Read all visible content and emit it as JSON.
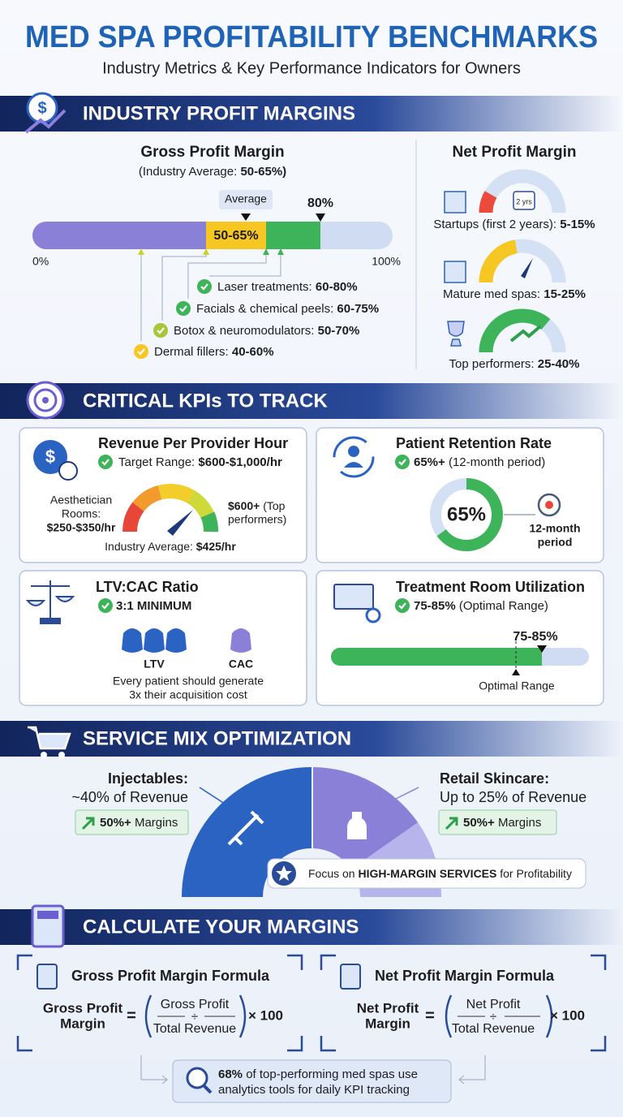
{
  "header": {
    "title": "MED SPA PROFITABILITY BENCHMARKS",
    "subtitle": "Industry Metrics & Key Performance Indicators for Owners"
  },
  "profit_margins": {
    "heading": "INDUSTRY PROFIT MARGINS",
    "gross": {
      "title": "Gross Profit Margin",
      "note_label": "(Industry Average: ",
      "note_value": "50-65%)",
      "average_label": "Average",
      "band_label": "50-65%",
      "marker_label": "80%",
      "axis_min": "0%",
      "axis_max": "100%",
      "services": [
        {
          "name": "Laser treatments: ",
          "range": "60-80%"
        },
        {
          "name": "Facials & chemical peels: ",
          "range": "60-75%"
        },
        {
          "name": "Botox & neuromodulators: ",
          "range": "50-70%"
        },
        {
          "name": "Dermal fillers: ",
          "range": "40-60%"
        }
      ]
    },
    "net": {
      "title": "Net Profit Margin",
      "badge": "2 yrs",
      "tiers": [
        {
          "label": "Startups (first 2 years): ",
          "range": "5-15%"
        },
        {
          "label": "Mature med spas: ",
          "range": "15-25%"
        },
        {
          "label": "Top performers: ",
          "range": "25-40%"
        }
      ]
    }
  },
  "kpis": {
    "heading": "CRITICAL KPIs TO TRACK",
    "revenue": {
      "title": "Revenue Per Provider Hour",
      "target_label": "Target Range: ",
      "target_value": "$600-$1,000/hr",
      "left_label_lines": [
        "Aesthetician",
        "Rooms:"
      ],
      "left_value": "$250-$350/hr",
      "right_value": "$600+",
      "right_label_lines": [
        "(Top",
        "performers)"
      ],
      "avg_label": "Industry Average: ",
      "avg_value": "$425/hr"
    },
    "retention": {
      "title": "Patient Retention Rate",
      "target_value": "65%+",
      "target_label": " (12-month period)",
      "center": "65%",
      "side_lines": [
        "12-month",
        "period"
      ]
    },
    "ltv": {
      "title": "LTV:CAC Ratio",
      "target": "3:1 MINIMUM",
      "ltv": "LTV",
      "cac": "CAC",
      "note_lines": [
        "Every patient should generate",
        "3x their acquisition cost"
      ]
    },
    "utilization": {
      "title": "Treatment Room Utilization",
      "target_value": "75-85%",
      "target_label": " (Optimal Range)",
      "marker": "75-85%",
      "bottom": "Optimal Range"
    }
  },
  "service_mix": {
    "heading": "SERVICE MIX OPTIMIZATION",
    "injectables": {
      "title": "Injectables:",
      "share": "~40% of Revenue",
      "margin": "50%+",
      "margin_label": " Margins"
    },
    "retail": {
      "title": "Retail Skincare:",
      "share": "Up to 25% of Revenue",
      "margin": "50%+",
      "margin_label": " Margins"
    },
    "callout": [
      "Focus on ",
      "HIGH-MARGIN SERVICES",
      " for Profitability"
    ]
  },
  "calculate": {
    "heading": "CALCULATE YOUR MARGINS",
    "formulas": [
      {
        "title": "Gross Profit Margin Formula",
        "lhs_lines": [
          "Gross Profit",
          "Margin"
        ],
        "equals": "=",
        "numerator": "Gross Profit",
        "operator": "÷",
        "denominator": "Total Revenue",
        "multiplier": "× 100"
      },
      {
        "title": "Net Profit Margin Formula",
        "lhs_lines": [
          "Net Profit",
          "Margin"
        ],
        "equals": "=",
        "numerator": "Net Profit",
        "operator": "÷",
        "denominator": "Total Revenue",
        "multiplier": "× 100"
      }
    ],
    "footer": {
      "stat": "68%",
      "text_lines": [
        " of top-performing med spas use",
        "analytics tools for daily KPI tracking"
      ]
    }
  }
}
